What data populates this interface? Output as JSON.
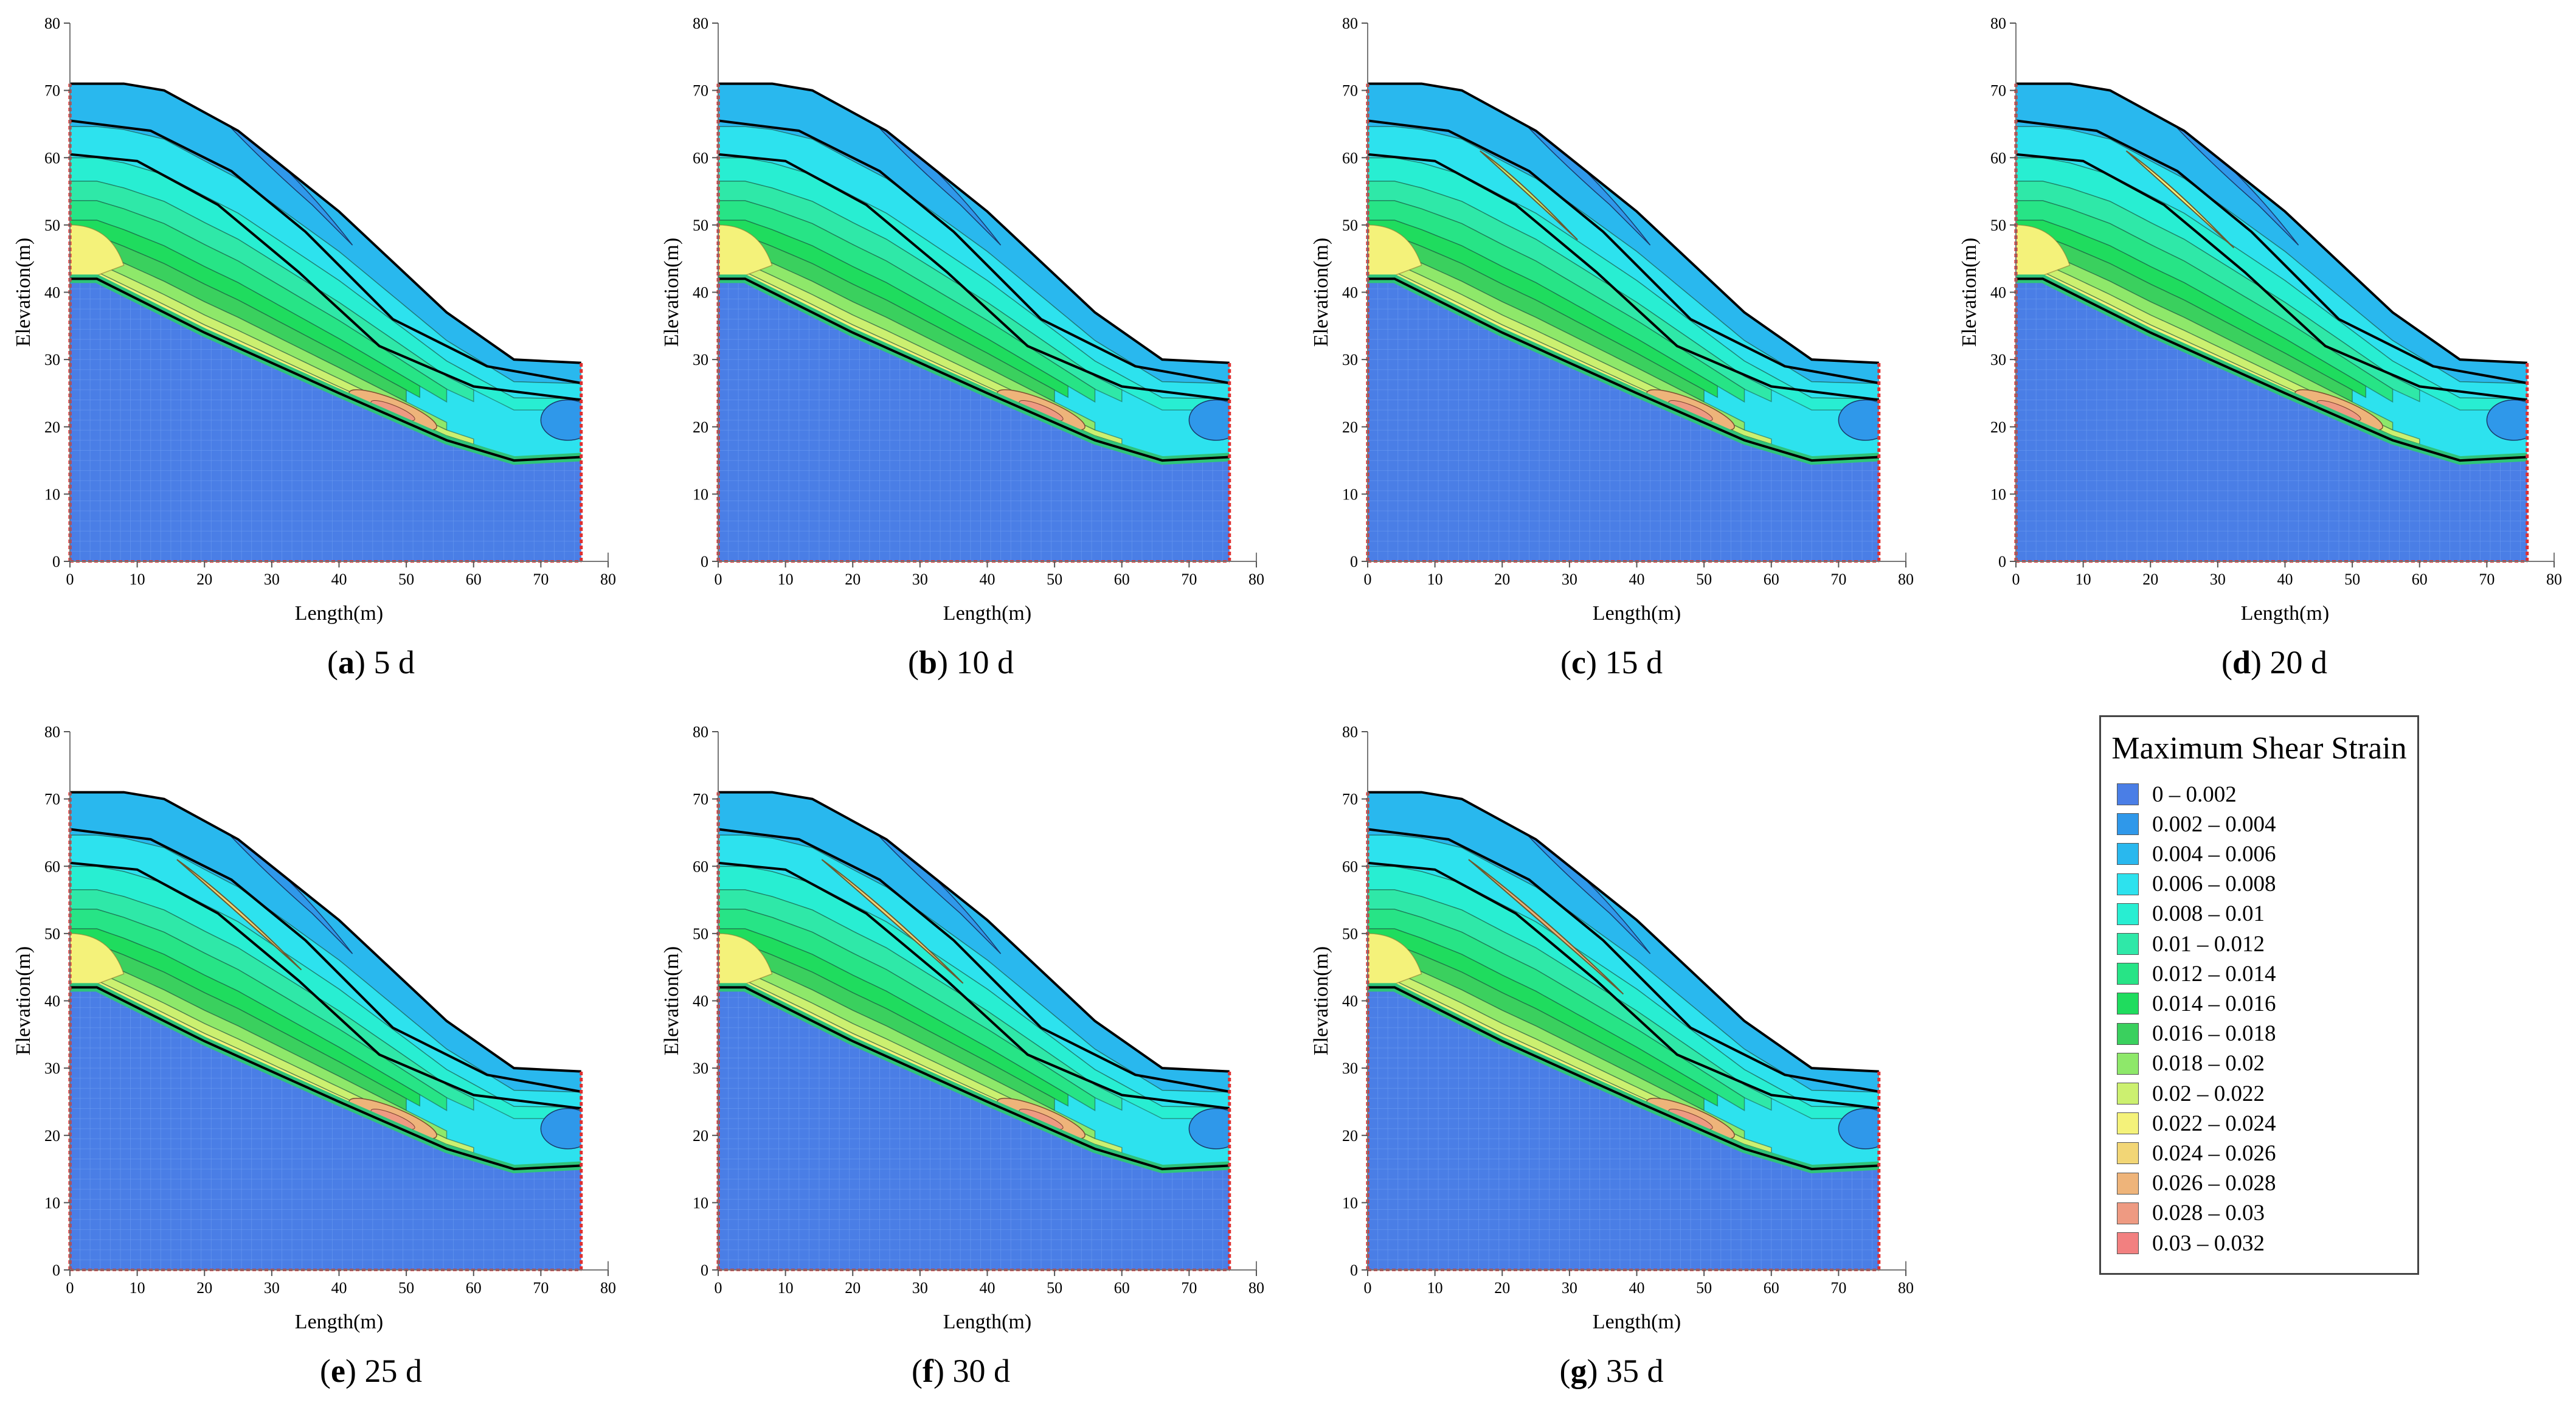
{
  "colors": {
    "bins": [
      "#4a7ee6",
      "#2f98ea",
      "#29b8ee",
      "#2de2ee",
      "#28eed2",
      "#2fe8a8",
      "#27e486",
      "#1fdc5e",
      "#3ad05e",
      "#8ee86a",
      "#ccf070",
      "#f4f27a",
      "#f2d676",
      "#eeb47a",
      "#ee9a82",
      "#f28080"
    ],
    "bedrock": "#4a7ee6",
    "boundary": "#e03030"
  },
  "chart_data": {
    "type": "contour",
    "xlabel": "Length(m)",
    "ylabel": "Elevation(m)",
    "xlim": [
      0,
      80
    ],
    "ylim": [
      0,
      80
    ],
    "xticks": [
      0,
      10,
      20,
      30,
      40,
      50,
      60,
      70,
      80
    ],
    "yticks": [
      0,
      10,
      20,
      30,
      40,
      50,
      60,
      70,
      80
    ],
    "ground_surface": [
      [
        0,
        71
      ],
      [
        8,
        71
      ],
      [
        14,
        70
      ],
      [
        25,
        64
      ],
      [
        40,
        52
      ],
      [
        56,
        37
      ],
      [
        66,
        30
      ],
      [
        76,
        29.5
      ]
    ],
    "bedrock_surface": [
      [
        0,
        42
      ],
      [
        4,
        42
      ],
      [
        20,
        34
      ],
      [
        40,
        25
      ],
      [
        56,
        18
      ],
      [
        66,
        15
      ],
      [
        76,
        15.5
      ]
    ],
    "layer_boundaries": [
      [
        [
          0,
          65.5
        ],
        [
          12,
          64
        ],
        [
          24,
          58
        ],
        [
          35,
          49
        ],
        [
          48,
          36
        ],
        [
          62,
          29
        ],
        [
          76,
          26.5
        ]
      ],
      [
        [
          0,
          60.5
        ],
        [
          10,
          59.5
        ],
        [
          22,
          53
        ],
        [
          34,
          43
        ],
        [
          46,
          32
        ],
        [
          60,
          26
        ],
        [
          76,
          24
        ]
      ]
    ],
    "legend": {
      "title": "Maximum Shear Strain",
      "items": [
        "0 – 0.002",
        "0.002 – 0.004",
        "0.004 – 0.006",
        "0.006 – 0.008",
        "0.008 – 0.01",
        "0.01 – 0.012",
        "0.012 – 0.014",
        "0.014 – 0.016",
        "0.016 – 0.018",
        "0.018 – 0.02",
        "0.02 – 0.022",
        "0.022 – 0.024",
        "0.024 – 0.026",
        "0.026 – 0.028",
        "0.028 – 0.03",
        "0.03 – 0.032"
      ]
    },
    "panels": [
      {
        "letter": "a",
        "label": "5 d",
        "band_strength": 0.0
      },
      {
        "letter": "b",
        "label": "10 d",
        "band_strength": 0.0
      },
      {
        "letter": "c",
        "label": "15 d",
        "band_strength": 0.15
      },
      {
        "letter": "d",
        "label": "20 d",
        "band_strength": 0.3
      },
      {
        "letter": "e",
        "label": "25 d",
        "band_strength": 0.55
      },
      {
        "letter": "f",
        "label": "30 d",
        "band_strength": 0.8
      },
      {
        "letter": "g",
        "label": "35 d",
        "band_strength": 1.0
      }
    ]
  }
}
